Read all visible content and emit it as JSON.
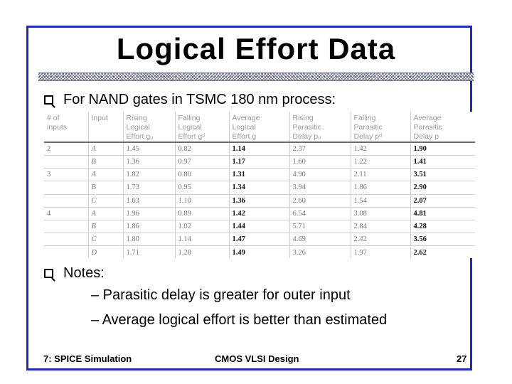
{
  "slide": {
    "title": "Logical Effort Data",
    "bullet1": "For NAND gates in TSMC 180 nm process:",
    "bullet2": "Notes:",
    "sub1": "– Parasitic delay is greater for outer input",
    "sub2": "– Average logical effort is better than estimated"
  },
  "table": {
    "headers": [
      [
        "# of",
        "inputs"
      ],
      [
        "Input"
      ],
      [
        "Rising",
        "Logical",
        "Effort gᵤ"
      ],
      [
        "Falling",
        "Logical",
        "Effort gᵈ"
      ],
      [
        "Average",
        "Logical",
        "Effort g"
      ],
      [
        "Rising",
        "Parasitic",
        "Delay pᵤ"
      ],
      [
        "Falling",
        "Parasitic",
        "Delay pᵈ"
      ],
      [
        "Average",
        "Parasitic",
        "Delay p"
      ]
    ],
    "rows": [
      [
        "2",
        "A",
        "1.45",
        "0.82",
        "1.14",
        "2.37",
        "1.42",
        "1.90"
      ],
      [
        "",
        "B",
        "1.36",
        "0.97",
        "1.17",
        "1.60",
        "1.22",
        "1.41"
      ],
      [
        "3",
        "A",
        "1.82",
        "0.80",
        "1.31",
        "4.90",
        "2.11",
        "3.51"
      ],
      [
        "",
        "B",
        "1.73",
        "0.95",
        "1.34",
        "3.94",
        "1.86",
        "2.90"
      ],
      [
        "",
        "C",
        "1.63",
        "1.10",
        "1.36",
        "2.60",
        "1.54",
        "2.07"
      ],
      [
        "4",
        "A",
        "1.96",
        "0.89",
        "1.42",
        "6.54",
        "3.08",
        "4.81"
      ],
      [
        "",
        "B",
        "1.86",
        "1.02",
        "1.44",
        "5.71",
        "2.84",
        "4.28"
      ],
      [
        "",
        "C",
        "1.80",
        "1.14",
        "1.47",
        "4.69",
        "2.42",
        "3.56"
      ],
      [
        "",
        "D",
        "1.71",
        "1.28",
        "1.49",
        "3.26",
        "1.97",
        "2.62"
      ]
    ]
  },
  "footer": {
    "left": "7: SPICE Simulation",
    "center": "CMOS VLSI Design",
    "right": "27"
  },
  "colors": {
    "frame": "#1f2bc4",
    "hatch": "#6a6f90"
  }
}
